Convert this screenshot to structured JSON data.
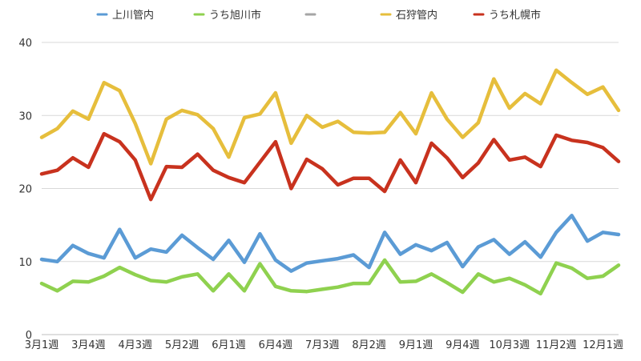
{
  "chart_data": {
    "type": "line",
    "title": "",
    "xlabel": "",
    "ylabel": "",
    "ylim": [
      0,
      40
    ],
    "yticks": [
      0,
      10,
      20,
      30,
      40
    ],
    "grid": true,
    "legend_position": "top",
    "x_tick_labels": [
      "3月1週",
      "3月4週",
      "4月3週",
      "5月2週",
      "6月1週",
      "6月4週",
      "7月3週",
      "8月2週",
      "9月1週",
      "9月4週",
      "10月3週",
      "11月2週",
      "12月1週"
    ],
    "x_tick_every": 3,
    "legend": [
      {
        "name": "上川管内",
        "color": "#5b9bd5"
      },
      {
        "name": "うち旭川市",
        "color": "#8fd14f"
      },
      {
        "name": "",
        "color": "#a5a5a5"
      },
      {
        "name": "石狩管内",
        "color": "#e6be3c"
      },
      {
        "name": "うち札幌市",
        "color": "#c8321e"
      }
    ],
    "series": [
      {
        "name": "上川管内",
        "color": "#5b9bd5",
        "values": [
          10.3,
          10,
          12.2,
          11.1,
          10.5,
          14.4,
          10.5,
          11.7,
          11.3,
          13.6,
          11.9,
          10.3,
          12.9,
          9.9,
          13.8,
          10.2,
          8.7,
          9.8,
          10.1,
          10.4,
          10.9,
          9.2,
          14,
          11,
          12.3,
          11.5,
          12.6,
          9.3,
          12,
          13,
          11,
          12.7,
          10.6,
          14,
          16.3,
          12.8,
          14,
          13.7
        ]
      },
      {
        "name": "うち旭川市",
        "color": "#8fd14f",
        "values": [
          7,
          6,
          7.3,
          7.2,
          8,
          9.2,
          8.2,
          7.4,
          7.2,
          7.9,
          8.3,
          6,
          8.3,
          6,
          9.7,
          6.6,
          6,
          5.9,
          6.2,
          6.5,
          7,
          7,
          10.2,
          7.2,
          7.3,
          8.3,
          7.1,
          5.8,
          8.3,
          7.2,
          7.7,
          6.8,
          5.6,
          9.8,
          9.1,
          7.7,
          8,
          9.5
        ]
      },
      {
        "name": "石狩管内",
        "color": "#e6be3c",
        "values": [
          27,
          28.2,
          30.6,
          29.5,
          34.5,
          33.4,
          28.9,
          23.4,
          29.5,
          30.7,
          30.1,
          28.2,
          24.3,
          29.7,
          30.2,
          33.1,
          26.2,
          30,
          28.4,
          29.2,
          27.7,
          27.6,
          27.7,
          30.4,
          27.5,
          33.1,
          29.5,
          27,
          29,
          35,
          31,
          33,
          31.6,
          36.2,
          34.5,
          32.9,
          33.9,
          30.7
        ]
      },
      {
        "name": "うち札幌市",
        "color": "#c8321e",
        "values": [
          22,
          22.5,
          24.2,
          22.9,
          27.5,
          26.4,
          23.9,
          18.5,
          23,
          22.9,
          24.7,
          22.5,
          21.5,
          20.8,
          23.6,
          26.4,
          20,
          24,
          22.7,
          20.5,
          21.4,
          21.4,
          19.6,
          23.9,
          20.8,
          26.2,
          24.2,
          21.5,
          23.5,
          26.7,
          23.9,
          24.3,
          23,
          27.3,
          26.6,
          26.3,
          25.6,
          23.7
        ]
      }
    ]
  }
}
